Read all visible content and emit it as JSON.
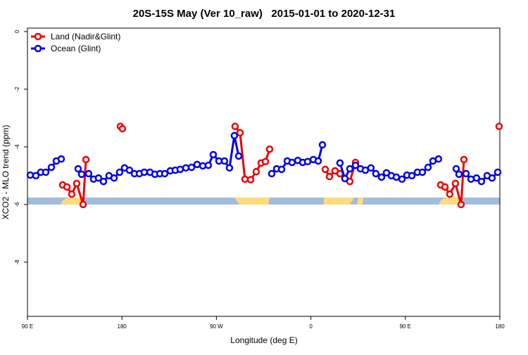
{
  "chart_data": {
    "type": "line",
    "title": "20S-15S May (Ver 10_raw)   2015-01-01 to 2020-12-31",
    "x_label": "Longitude (deg E)",
    "y_label": "XCO2 - MLO trend (ppm)",
    "xlim": [
      90,
      540
    ],
    "xticks": [
      {
        "value": 90,
        "label": "90 E"
      },
      {
        "value": 180,
        "label": "180"
      },
      {
        "value": 270,
        "label": "90 W"
      },
      {
        "value": 360,
        "label": "0"
      },
      {
        "value": 450,
        "label": "90 E"
      },
      {
        "value": 540,
        "label": "180"
      }
    ],
    "ylim": [
      -9.88,
      0.12
    ],
    "yticks": [
      0,
      -2,
      -4,
      -6,
      -8
    ],
    "legend": "top-left",
    "series": [
      {
        "name": "Land (Nadir&Glint)",
        "color": "#ee0000",
        "x": [
          123.5,
          127.6,
          132.2,
          136.9,
          143.0,
          145.7,
          null,
          178.5,
          180.5,
          null,
          287.8,
          292.5,
          297.2,
          302.6,
          307.9,
          312.6,
          316.7,
          320.7,
          null,
          373.7,
          377.7,
          383.0,
          387.7,
          397.1,
          402.5,
          null,
          483.6,
          487.7,
          492.3,
          497.7,
          503.1,
          505.8,
          null,
          539.3
        ],
        "values": [
          -5.32,
          -5.39,
          -5.64,
          -5.27,
          -6.0,
          -4.44,
          null,
          -3.29,
          -3.37,
          null,
          -3.29,
          -3.51,
          -5.12,
          -5.14,
          -4.86,
          -4.56,
          -4.51,
          -4.08,
          null,
          -4.78,
          -5.03,
          -4.83,
          -4.93,
          -5.2,
          -4.54,
          null,
          -5.32,
          -5.39,
          -5.64,
          -5.27,
          -6.0,
          -4.44,
          null,
          -3.29
        ]
      },
      {
        "name": "Ocean (Glint)",
        "color": "#0000ee",
        "x": [
          92.7,
          98.0,
          102.7,
          107.4,
          112.8,
          117.5,
          122.2,
          null,
          138.3,
          141.6,
          148.3,
          153.0,
          157.7,
          162.4,
          167.7,
          172.5,
          177.8,
          182.5,
          187.2,
          191.9,
          196.6,
          201.3,
          206.7,
          211.4,
          216.1,
          220.8,
          226.1,
          230.8,
          235.5,
          240.9,
          246.3,
          251.6,
          257.0,
          262.3,
          267.0,
          272.4,
          277.7,
          282.4,
          287.1,
          291.2,
          null,
          322.7,
          327.4,
          332.1,
          337.5,
          342.1,
          347.5,
          352.2,
          356.9,
          362.3,
          367.0,
          371.0,
          null,
          387.7,
          392.4,
          397.1,
          402.5,
          407.2,
          411.9,
          417.2,
          421.9,
          427.3,
          432.0,
          436.7,
          441.4,
          446.8,
          451.5,
          456.2,
          461.5,
          466.2,
          471.6,
          476.3,
          481.6,
          null,
          498.4,
          501.1,
          507.8,
          512.5,
          517.8,
          522.5,
          527.9,
          532.6,
          538.0
        ],
        "values": [
          -4.98,
          -5.0,
          -4.88,
          -4.88,
          -4.71,
          -4.49,
          -4.42,
          null,
          -4.76,
          -4.95,
          -4.93,
          -5.12,
          -5.08,
          -5.2,
          -5.0,
          -5.08,
          -4.88,
          -4.73,
          -4.81,
          -4.93,
          -4.93,
          -4.88,
          -4.88,
          -4.95,
          -4.93,
          -4.93,
          -4.83,
          -4.81,
          -4.78,
          -4.73,
          -4.71,
          -4.61,
          -4.66,
          -4.64,
          -4.27,
          -4.49,
          -4.49,
          -4.73,
          -3.61,
          -4.32,
          null,
          -4.93,
          -4.76,
          -4.78,
          -4.49,
          -4.54,
          -4.47,
          -4.54,
          -4.51,
          -4.44,
          -4.49,
          -3.93,
          null,
          -4.56,
          -5.1,
          -4.76,
          -4.64,
          -4.76,
          -4.81,
          -4.73,
          -4.93,
          -5.05,
          -4.9,
          -5.0,
          -5.05,
          -5.12,
          -4.98,
          -5.0,
          -4.88,
          -4.88,
          -4.71,
          -4.49,
          -4.42,
          null,
          -4.76,
          -4.95,
          -4.93,
          -5.12,
          -5.08,
          -5.2,
          -5.0,
          -5.08,
          -4.88
        ]
      }
    ]
  }
}
